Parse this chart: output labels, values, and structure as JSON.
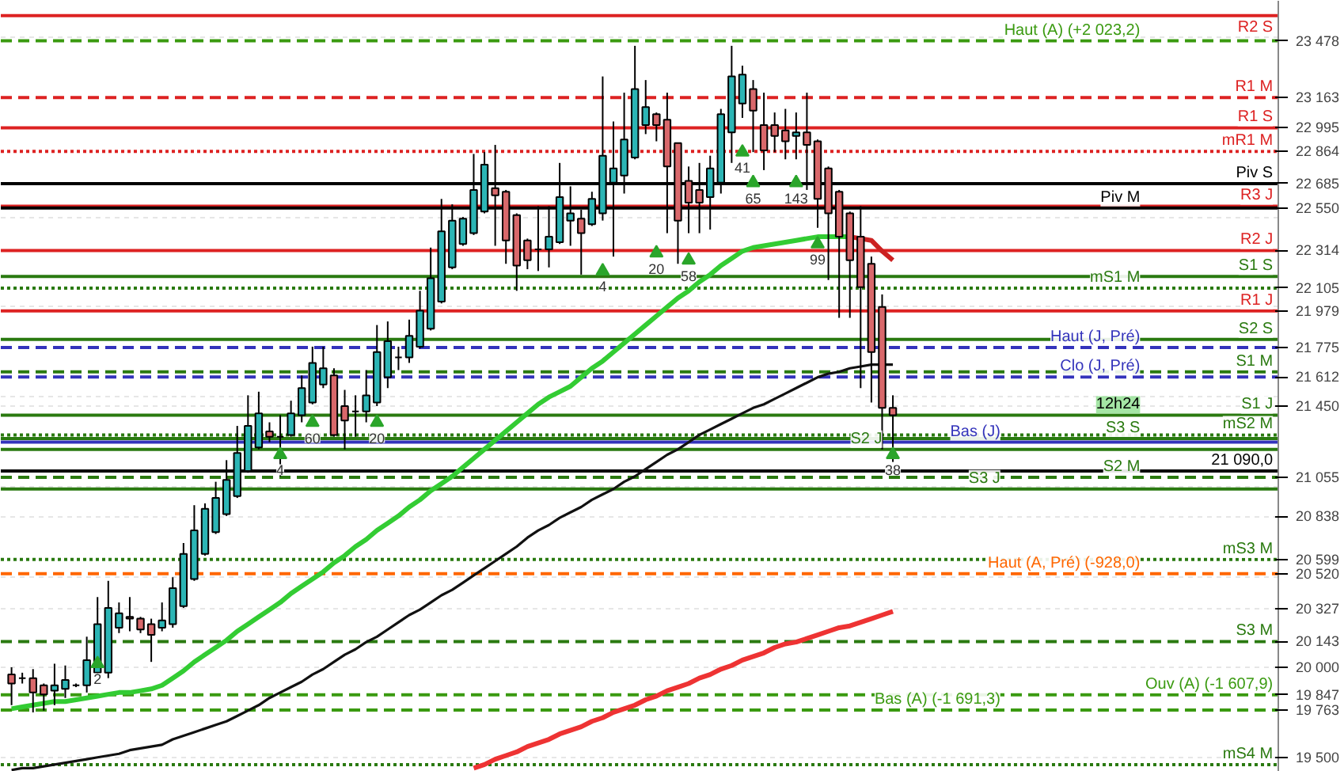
{
  "chart_data": {
    "type": "candlestick",
    "categories": [
      null,
      null,
      null,
      null,
      null,
      null,
      null,
      null,
      null,
      null,
      null,
      null,
      null,
      null,
      null,
      null,
      null,
      null,
      null,
      null,
      null,
      null,
      null,
      null,
      null,
      null,
      null,
      null,
      null,
      null,
      null,
      null,
      null,
      null,
      null,
      null,
      null,
      null,
      null,
      null,
      null,
      null,
      null,
      null,
      null,
      null,
      null,
      null,
      null,
      null,
      null,
      null,
      null,
      null,
      null,
      null,
      null,
      null,
      null,
      null,
      null,
      null,
      null,
      null,
      null,
      null,
      null,
      null,
      null,
      null,
      null,
      null,
      null,
      null,
      null,
      null,
      null,
      null,
      null,
      null,
      null,
      null,
      null
    ],
    "ohlc": [
      [
        19960,
        20000,
        19790,
        19910
      ],
      [
        19940,
        19970,
        19910,
        19940
      ],
      [
        19940,
        19990,
        19750,
        19860
      ],
      [
        19900,
        19910,
        19760,
        19850
      ],
      [
        19870,
        20020,
        19790,
        19900
      ],
      [
        19880,
        20010,
        19830,
        19930
      ],
      [
        19900,
        19910,
        19890,
        19900
      ],
      [
        19900,
        20170,
        19860,
        20040
      ],
      [
        19970,
        20390,
        19960,
        20240
      ],
      [
        19970,
        20480,
        19940,
        20330
      ],
      [
        20220,
        20360,
        20190,
        20300
      ],
      [
        20280,
        20390,
        20200,
        20270
      ],
      [
        20270,
        20280,
        20190,
        20210
      ],
      [
        20240,
        20270,
        20030,
        20180
      ],
      [
        20220,
        20360,
        20200,
        20260
      ],
      [
        20240,
        20500,
        20220,
        20440
      ],
      [
        20340,
        20690,
        20330,
        20630
      ],
      [
        20490,
        20900,
        20480,
        20760
      ],
      [
        20630,
        20910,
        20620,
        20880
      ],
      [
        20750,
        21030,
        20740,
        20940
      ],
      [
        20850,
        21150,
        20840,
        21040
      ],
      [
        20950,
        21340,
        20940,
        21190
      ],
      [
        21090,
        21510,
        21080,
        21340
      ],
      [
        21220,
        21530,
        21210,
        21410
      ],
      [
        21310,
        21360,
        21250,
        21280
      ],
      [
        21280,
        21400,
        21060,
        21280
      ],
      [
        21290,
        21480,
        21280,
        21410
      ],
      [
        21400,
        21620,
        21360,
        21550
      ],
      [
        21470,
        21780,
        21460,
        21690
      ],
      [
        21570,
        21780,
        21550,
        21660
      ],
      [
        21620,
        21660,
        21280,
        21290
      ],
      [
        21450,
        21540,
        21210,
        21370
      ],
      [
        21420,
        21510,
        21280,
        21420
      ],
      [
        21420,
        21650,
        21360,
        21510
      ],
      [
        21470,
        21900,
        21450,
        21750
      ],
      [
        21610,
        21920,
        21550,
        21810
      ],
      [
        21720,
        21780,
        21650,
        21720
      ],
      [
        21720,
        21930,
        21690,
        21840
      ],
      [
        21780,
        22090,
        21770,
        21980
      ],
      [
        21880,
        22330,
        21870,
        22160
      ],
      [
        22030,
        22600,
        22020,
        22420
      ],
      [
        22220,
        22570,
        22210,
        22480
      ],
      [
        22350,
        22500,
        22340,
        22490
      ],
      [
        22410,
        22850,
        22400,
        22650
      ],
      [
        22530,
        22860,
        22520,
        22790
      ],
      [
        22660,
        22900,
        22340,
        22620
      ],
      [
        22640,
        22650,
        22240,
        22370
      ],
      [
        22510,
        22520,
        22090,
        22230
      ],
      [
        22370,
        22380,
        22210,
        22260
      ],
      [
        22320,
        22560,
        22200,
        22320
      ],
      [
        22320,
        22560,
        22220,
        22390
      ],
      [
        22360,
        22800,
        22350,
        22610
      ],
      [
        22480,
        22670,
        22340,
        22520
      ],
      [
        22490,
        22540,
        22180,
        22410
      ],
      [
        22460,
        22640,
        22450,
        22600
      ],
      [
        22520,
        23280,
        22480,
        22840
      ],
      [
        22690,
        23030,
        22280,
        22770
      ],
      [
        22730,
        23190,
        22630,
        22930
      ],
      [
        22830,
        23450,
        22820,
        23210
      ],
      [
        23010,
        23260,
        22960,
        23110
      ],
      [
        23070,
        23080,
        22920,
        23010
      ],
      [
        23040,
        23190,
        22410,
        22780
      ],
      [
        22910,
        22910,
        22240,
        22480
      ],
      [
        22700,
        22780,
        22410,
        22580
      ],
      [
        22650,
        22800,
        22410,
        22580
      ],
      [
        22610,
        22840,
        22430,
        22770
      ],
      [
        22690,
        23100,
        22630,
        23070
      ],
      [
        22970,
        23450,
        22800,
        23280
      ],
      [
        23130,
        23340,
        23050,
        23290
      ],
      [
        23210,
        23260,
        22860,
        23090
      ],
      [
        23010,
        23190,
        22760,
        22870
      ],
      [
        23010,
        23080,
        22860,
        22950
      ],
      [
        22980,
        23100,
        22820,
        22920
      ],
      [
        22950,
        23080,
        22820,
        22970
      ],
      [
        22970,
        23190,
        22650,
        22900
      ],
      [
        22920,
        22930,
        22440,
        22600
      ],
      [
        22770,
        22780,
        22150,
        22520
      ],
      [
        22640,
        22650,
        21940,
        22390
      ],
      [
        22520,
        22530,
        21940,
        22260
      ],
      [
        22390,
        22560,
        21550,
        22110
      ],
      [
        22240,
        22280,
        21470,
        21750
      ],
      [
        22000,
        22070,
        21210,
        21440
      ],
      [
        21440,
        21510,
        21140,
        21400
      ]
    ],
    "colors": [
      "#d9686b",
      "#000000",
      "#d9686b",
      "#d9686b",
      "#2cb5b5",
      "#2cb5b5",
      "#000000",
      "#2cb5b5",
      "#2cb5b5",
      "#2cb5b5",
      "#2cb5b5",
      "#d9686b",
      "#d9686b",
      "#d9686b",
      "#2cb5b5",
      "#2cb5b5",
      "#2cb5b5",
      "#2cb5b5",
      "#2cb5b5",
      "#2cb5b5",
      "#2cb5b5",
      "#2cb5b5",
      "#2cb5b5",
      "#2cb5b5",
      "#d9686b",
      "#000000",
      "#2cb5b5",
      "#2cb5b5",
      "#2cb5b5",
      "#2cb5b5",
      "#d9686b",
      "#d9686b",
      "#000000",
      "#2cb5b5",
      "#2cb5b5",
      "#2cb5b5",
      "#000000",
      "#2cb5b5",
      "#2cb5b5",
      "#2cb5b5",
      "#2cb5b5",
      "#2cb5b5",
      "#2cb5b5",
      "#2cb5b5",
      "#2cb5b5",
      "#d9686b",
      "#d9686b",
      "#d9686b",
      "#d9686b",
      "#000000",
      "#2cb5b5",
      "#2cb5b5",
      "#2cb5b5",
      "#d9686b",
      "#2cb5b5",
      "#2cb5b5",
      "#2cb5b5",
      "#2cb5b5",
      "#2cb5b5",
      "#2cb5b5",
      "#d9686b",
      "#d9686b",
      "#d9686b",
      "#d9686b",
      "#d9686b",
      "#2cb5b5",
      "#2cb5b5",
      "#2cb5b5",
      "#2cb5b5",
      "#d9686b",
      "#d9686b",
      "#d9686b",
      "#d9686b",
      "#2cb5b5",
      "#d9686b",
      "#d9686b",
      "#d9686b",
      "#d9686b",
      "#d9686b",
      "#d9686b",
      "#d9686b",
      "#d9686b",
      "#d9686b"
    ],
    "series": [
      {
        "type": "line",
        "color": "#33cc33",
        "values": [
          19770,
          19780,
          19790,
          19800,
          19810,
          19810,
          19820,
          19830,
          19840,
          19850,
          19860,
          19860,
          19870,
          19880,
          19900,
          19940,
          19980,
          20030,
          20070,
          20110,
          20150,
          20200,
          20240,
          20280,
          20320,
          20360,
          20410,
          20450,
          20490,
          20530,
          20580,
          20620,
          20670,
          20710,
          20760,
          20800,
          20840,
          20890,
          20930,
          20980,
          21020,
          21060,
          21110,
          21160,
          21210,
          21260,
          21310,
          21360,
          21410,
          21460,
          21500,
          21530,
          21560,
          21610,
          21660,
          21700,
          21750,
          21800,
          21850,
          21900,
          21950,
          22000,
          22050,
          22090,
          22140,
          22180,
          22230,
          22270,
          22310,
          22330,
          22340,
          22350,
          22360,
          22370,
          22380,
          22390,
          22390,
          22390,
          22390,
          null,
          null,
          null,
          null
        ]
      },
      {
        "type": "line",
        "color": "#cc2222",
        "values": [
          null,
          null,
          null,
          null,
          null,
          null,
          null,
          null,
          null,
          null,
          null,
          null,
          null,
          null,
          null,
          null,
          null,
          null,
          null,
          null,
          null,
          null,
          null,
          null,
          null,
          null,
          null,
          null,
          null,
          null,
          null,
          null,
          null,
          null,
          null,
          null,
          null,
          null,
          null,
          null,
          null,
          null,
          null,
          null,
          null,
          null,
          null,
          null,
          null,
          null,
          null,
          null,
          null,
          null,
          null,
          null,
          null,
          null,
          null,
          null,
          null,
          null,
          null,
          null,
          null,
          null,
          null,
          null,
          null,
          null,
          null,
          null,
          null,
          null,
          null,
          null,
          null,
          null,
          22390,
          22380,
          22370,
          22310,
          22260
        ]
      },
      {
        "type": "line",
        "color": "#111111",
        "values": [
          19430,
          19440,
          19440,
          19450,
          19460,
          19470,
          19480,
          19490,
          19500,
          19510,
          19520,
          19540,
          19550,
          19560,
          19570,
          19600,
          19620,
          19640,
          19660,
          19680,
          19700,
          19730,
          19760,
          19790,
          19830,
          19860,
          19890,
          19920,
          19960,
          19990,
          20030,
          20070,
          20100,
          20140,
          20170,
          20210,
          20250,
          20290,
          20320,
          20360,
          20400,
          20430,
          20470,
          20510,
          20550,
          20590,
          20630,
          20670,
          20720,
          20760,
          20790,
          20830,
          20860,
          20890,
          20930,
          20960,
          20990,
          21030,
          21060,
          21100,
          21140,
          21180,
          21210,
          21250,
          21290,
          21320,
          21350,
          21380,
          21410,
          21440,
          21460,
          21490,
          21520,
          21550,
          21580,
          21610,
          21630,
          21640,
          21660,
          21670,
          21680,
          21680,
          21680
        ]
      },
      {
        "type": "line",
        "color": "#ee3333",
        "values": [
          null,
          null,
          null,
          null,
          null,
          null,
          null,
          null,
          null,
          null,
          null,
          null,
          null,
          null,
          null,
          null,
          null,
          null,
          null,
          null,
          null,
          null,
          null,
          null,
          null,
          null,
          null,
          null,
          null,
          null,
          null,
          null,
          null,
          null,
          null,
          null,
          null,
          null,
          null,
          null,
          null,
          null,
          null,
          19440,
          19460,
          19490,
          19510,
          19530,
          19560,
          19580,
          19600,
          19630,
          19650,
          19670,
          19700,
          19720,
          19750,
          19770,
          19790,
          19820,
          19840,
          19870,
          19890,
          19910,
          19940,
          19960,
          19990,
          20010,
          20040,
          20060,
          20080,
          20110,
          20130,
          20140,
          20160,
          20180,
          20200,
          20220,
          20230,
          20250,
          20270,
          20290,
          20310
        ]
      },
      {
        "type": "scatter",
        "marker": "triangle",
        "color": "#2aa52a",
        "values": [
          null,
          null,
          null,
          null,
          null,
          null,
          null,
          null,
          20020,
          null,
          null,
          null,
          null,
          null,
          null,
          null,
          null,
          null,
          null,
          null,
          null,
          null,
          null,
          null,
          null,
          21180,
          null,
          null,
          21360,
          null,
          null,
          null,
          null,
          null,
          21360,
          null,
          null,
          null,
          null,
          null,
          null,
          null,
          null,
          null,
          null,
          null,
          null,
          null,
          null,
          null,
          null,
          null,
          null,
          null,
          null,
          22200,
          null,
          null,
          null,
          null,
          22300,
          null,
          null,
          22260,
          null,
          null,
          null,
          null,
          22860,
          22690,
          null,
          null,
          null,
          22690,
          null,
          22350,
          null,
          null,
          null,
          null,
          null,
          null,
          21180
        ],
        "name": null
      }
    ],
    "annotations": [
      {
        "text": "2",
        "y": 20020
      },
      {
        "text": "4",
        "y": 21180
      },
      {
        "text": "60",
        "y": 21360
      },
      {
        "text": "20",
        "y": 21360
      },
      {
        "text": "4",
        "y": 22200
      },
      {
        "text": "20",
        "y": 22300
      },
      {
        "text": "58",
        "y": 22260
      },
      {
        "text": "41",
        "y": 22860
      },
      {
        "text": "65",
        "y": 22690
      },
      {
        "text": "143",
        "y": 22690
      },
      {
        "text": "99",
        "y": 22350
      },
      {
        "text": "38",
        "y": 21180
      },
      "12h24"
    ],
    "ylim": [
      19420,
      23700
    ],
    "yticks": [
      {
        "value": 19500,
        "label": "19 500"
      },
      {
        "value": 19763,
        "label": "19 763"
      },
      {
        "value": 19847,
        "label": "19 847"
      },
      {
        "value": 20000,
        "label": "20 000"
      },
      {
        "value": 20143,
        "label": "20 143"
      },
      {
        "value": 20327,
        "label": "20 327"
      },
      {
        "value": 20500,
        "label": null
      },
      {
        "value": 20520,
        "label": "20 520"
      },
      {
        "value": 20599,
        "label": "20 599"
      },
      {
        "value": 20838,
        "label": "20 838"
      },
      {
        "value": 21000,
        "label": null
      },
      {
        "value": 21055,
        "label": "21 055"
      },
      {
        "value": 21450,
        "label": "21 450"
      },
      {
        "value": 21500,
        "label": null
      },
      {
        "value": 21612,
        "label": "21 612"
      },
      {
        "value": 21775,
        "label": "21 775"
      },
      {
        "value": 21979,
        "label": "21 979"
      },
      {
        "value": 22000,
        "label": null
      },
      {
        "value": 22105,
        "label": "22 105"
      },
      {
        "value": 22314,
        "label": "22 314"
      },
      {
        "value": 22500,
        "label": null
      },
      {
        "value": 22550,
        "label": "22 550"
      },
      {
        "value": 22685,
        "label": "22 685"
      },
      {
        "value": 22864,
        "label": "22 864"
      },
      {
        "value": 22995,
        "label": "22 995"
      },
      {
        "value": 23000,
        "label": null
      },
      {
        "value": 23163,
        "label": "23 163"
      },
      {
        "value": 23478,
        "label": "23 478"
      },
      {
        "value": 23500,
        "label": null
      }
    ],
    "ref_lines": [
      {
        "axis": "y",
        "value": 23618,
        "label": "R2 S",
        "color": "#dd2222",
        "line_style": "solid"
      },
      {
        "axis": "y",
        "value": 23478,
        "label": "Haut (A) (+2 023,2)",
        "color": "#3a9a10",
        "line_style": "dashed"
      },
      {
        "axis": "y",
        "value": 23163,
        "label": "R1 M",
        "color": "#dd2222",
        "line_style": "dashed"
      },
      {
        "axis": "y",
        "value": 22995,
        "label": "R1 S",
        "color": "#dd2222",
        "line_style": "solid"
      },
      {
        "axis": "y",
        "value": 22864,
        "label": "mR1 M",
        "color": "#dd2222",
        "line_style": "dotted"
      },
      {
        "axis": "y",
        "value": 22685,
        "label": "Piv S",
        "color": "#000000",
        "line_style": "solid"
      },
      {
        "axis": "y",
        "value": 22560,
        "label": "R3 J",
        "color": "#dd2222",
        "line_style": "solid"
      },
      {
        "axis": "y",
        "value": 22550,
        "label": "Piv M",
        "color": "#000000",
        "line_style": "solid"
      },
      {
        "axis": "y",
        "value": 22314,
        "label": "R2 J",
        "color": "#dd2222",
        "line_style": "solid"
      },
      {
        "axis": "y",
        "value": 22170,
        "label": "S1 S",
        "color": "#2a7a10",
        "line_style": "solid"
      },
      {
        "axis": "y",
        "value": 22105,
        "label": "mS1 M",
        "color": "#2a7a10",
        "line_style": "dotted"
      },
      {
        "axis": "y",
        "value": 21979,
        "label": "R1 J",
        "color": "#dd2222",
        "line_style": "solid"
      },
      {
        "axis": "y",
        "value": 21820,
        "label": "S2 S",
        "color": "#2a7a10",
        "line_style": "solid"
      },
      {
        "axis": "y",
        "value": 21775,
        "label": "Haut (J, Pré)",
        "color": "#3333bb",
        "line_style": "dashed"
      },
      {
        "axis": "y",
        "value": 21640,
        "label": "S1 M",
        "color": "#2a7a10",
        "line_style": "dashed"
      },
      {
        "axis": "y",
        "value": 21612,
        "label": "Clo (J, Pré)",
        "color": "#3333bb",
        "line_style": "dashed"
      },
      {
        "axis": "y",
        "value": 21400,
        "label": "S1 J",
        "color": "#2a7a10",
        "line_style": "solid"
      },
      {
        "axis": "y",
        "value": 21290,
        "label": "mS2 M",
        "color": "#2a7a10",
        "line_style": "dotted"
      },
      {
        "axis": "y",
        "value": 21270,
        "label": "S3 S",
        "color": "#2a7a10",
        "line_style": "solid"
      },
      {
        "axis": "y",
        "value": 21250,
        "label": "Bas (J)",
        "color": "#3333bb",
        "line_style": "solid"
      },
      {
        "axis": "y",
        "value": 21210,
        "label": "S2 J",
        "color": "#2a7a10",
        "line_style": "solid"
      },
      {
        "axis": "y",
        "value": 21090,
        "label": "21 090,0",
        "color": "#000000",
        "line_style": "solid"
      },
      {
        "axis": "y",
        "value": 21055,
        "label": "S2 M",
        "color": "#2a7a10",
        "line_style": "dashed"
      },
      {
        "axis": "y",
        "value": 20990,
        "label": "S3 J",
        "color": "#2a7a10",
        "line_style": "solid"
      },
      {
        "axis": "y",
        "value": 20599,
        "label": "mS3 M",
        "color": "#2a7a10",
        "line_style": "dotted"
      },
      {
        "axis": "y",
        "value": 20520,
        "label": "Haut (A, Pré) (-928,0)",
        "color": "#ff6600",
        "line_style": "dashed"
      },
      {
        "axis": "y",
        "value": 20143,
        "label": "S3 M",
        "color": "#2a7a10",
        "line_style": "dashed"
      },
      {
        "axis": "y",
        "value": 19847,
        "label": "Ouv (A) (-1 607,9)",
        "color": "#3a9a10",
        "line_style": "dashed"
      },
      {
        "axis": "y",
        "value": 19763,
        "label": "Bas (A) (-1 691,3)",
        "color": "#3a9a10",
        "line_style": "dashed"
      },
      {
        "axis": "y",
        "value": 19460,
        "label": "mS4 M",
        "color": "#2a7a10",
        "line_style": "dotted"
      }
    ],
    "grid": "y",
    "tick_labels": "y"
  }
}
